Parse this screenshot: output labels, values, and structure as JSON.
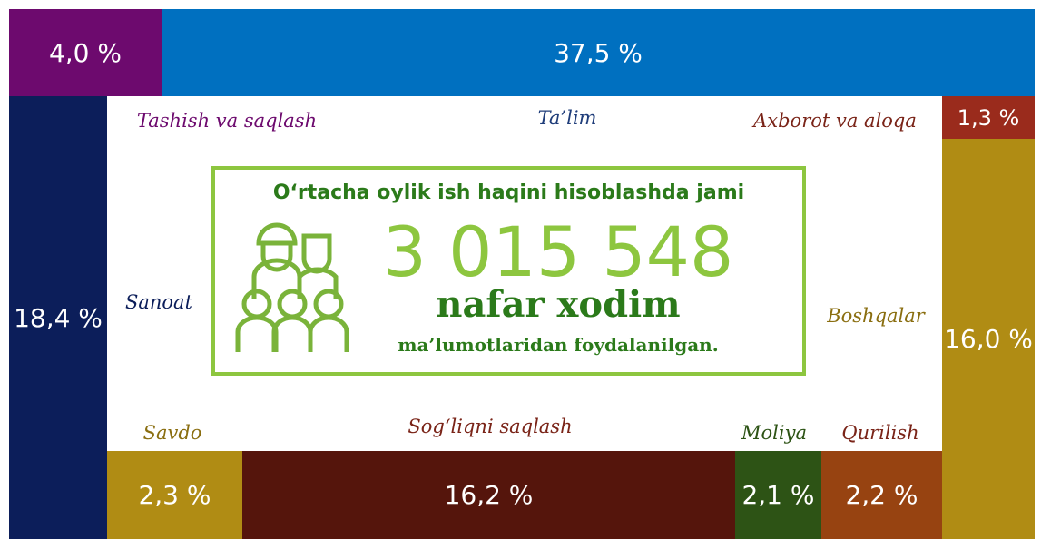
{
  "sectors": [
    {
      "name": "Tashish va saqlash",
      "value_label": "4,0 %"
    },
    {
      "name": "Ta’lim",
      "value_label": "37,5 %"
    },
    {
      "name": "Axborot va aloqa",
      "value_label": "1,3 %"
    },
    {
      "name": "Sanoat",
      "value_label": "18,4 %"
    },
    {
      "name": "Boshqalar",
      "value_label": "16,0 %"
    },
    {
      "name": "Savdo",
      "value_label": "2,3 %"
    },
    {
      "name": "Sog‘liqni saqlash",
      "value_label": "16,2 %"
    },
    {
      "name": "Moliya",
      "value_label": "2,1 %"
    },
    {
      "name": "Qurilish",
      "value_label": "2,2 %"
    }
  ],
  "center": {
    "heading": "O‘rtacha oylik ish haqini hisoblashda jami",
    "number": "3 015 548",
    "unit": "nafar xodim",
    "footer": "ma’lumotlaridan foydalanilgan."
  }
}
